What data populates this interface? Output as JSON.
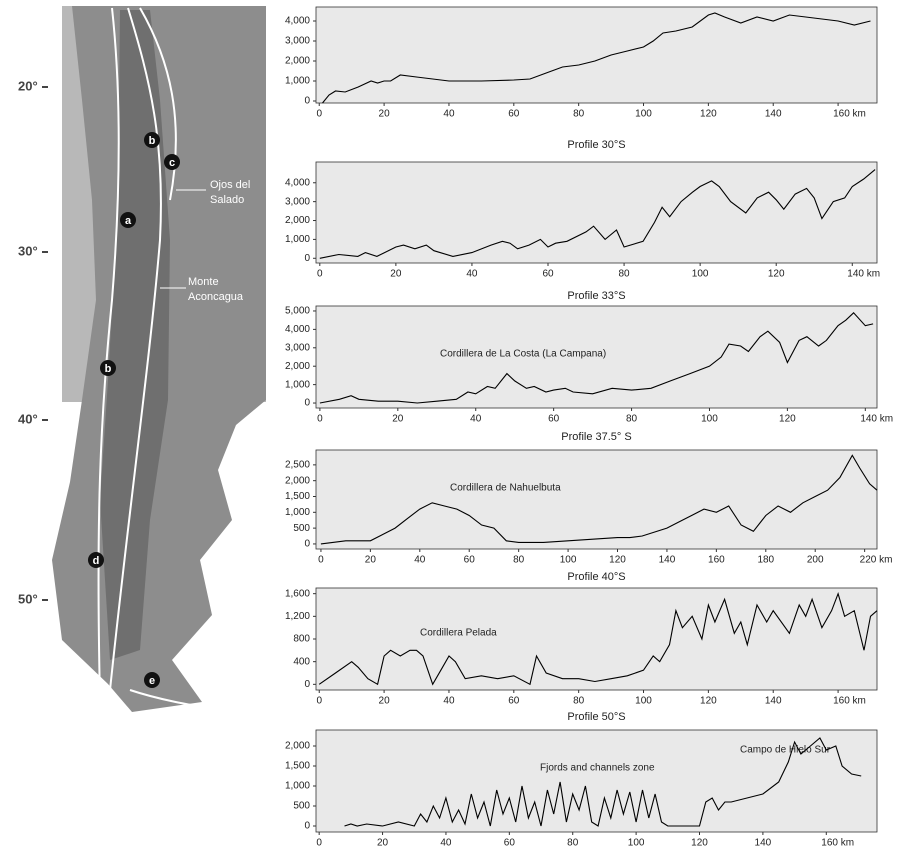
{
  "map": {
    "latitude_labels": [
      "20°",
      "30°",
      "40°",
      "50°"
    ],
    "zone_labels": [
      "b",
      "c",
      "a",
      "b",
      "d",
      "e"
    ],
    "peaks": [
      [
        "Ojos del",
        "Salado"
      ],
      [
        "Monte",
        "Aconcagua"
      ]
    ]
  },
  "chart_data": [
    {
      "type": "line",
      "color": "#000000",
      "x": [
        1,
        3,
        5,
        8,
        12,
        16,
        18,
        20,
        22,
        25,
        30,
        40,
        50,
        60,
        65,
        70,
        75,
        80,
        85,
        90,
        95,
        100,
        103,
        106,
        110,
        115,
        120,
        122,
        125,
        130,
        135,
        140,
        145,
        150,
        155,
        160,
        165,
        170
      ],
      "values": [
        -100,
        300,
        500,
        450,
        700,
        1000,
        900,
        1000,
        1000,
        1300,
        1200,
        1000,
        1000,
        1050,
        1100,
        1400,
        1700,
        1800,
        2000,
        2300,
        2500,
        2700,
        3000,
        3400,
        3500,
        3700,
        4300,
        4400,
        4200,
        3900,
        4200,
        4000,
        4300,
        4200,
        4100,
        4000,
        3800,
        4000
      ],
      "xlim": [
        -1,
        172
      ],
      "ylim": [
        -100,
        4700
      ],
      "xticks": [
        0,
        20,
        40,
        60,
        80,
        100,
        120,
        140,
        {
          "value": 160,
          "label": "160 km"
        }
      ],
      "yticks": [
        0,
        {
          "value": 1000,
          "label": "1,000"
        },
        {
          "value": 2000,
          "label": "2,000"
        },
        {
          "value": 3000,
          "label": "3,000"
        },
        {
          "value": 4000,
          "label": "4,000"
        }
      ]
    },
    {
      "type": "line",
      "title": "Profile 30°S",
      "color": "#000000",
      "x": [
        0,
        5,
        10,
        12,
        15,
        20,
        22,
        25,
        28,
        30,
        35,
        40,
        45,
        48,
        50,
        52,
        55,
        58,
        60,
        62,
        65,
        70,
        72,
        75,
        78,
        80,
        85,
        88,
        90,
        92,
        95,
        98,
        100,
        103,
        105,
        108,
        112,
        115,
        118,
        120,
        122,
        125,
        128,
        130,
        132,
        135,
        138,
        140,
        143,
        146
      ],
      "values": [
        0,
        200,
        100,
        300,
        100,
        600,
        700,
        500,
        700,
        400,
        100,
        300,
        700,
        900,
        800,
        500,
        700,
        1000,
        600,
        800,
        900,
        1400,
        1700,
        1000,
        1500,
        600,
        900,
        1900,
        2700,
        2200,
        3000,
        3500,
        3800,
        4100,
        3800,
        3000,
        2400,
        3200,
        3500,
        3100,
        2600,
        3400,
        3700,
        3200,
        2100,
        3000,
        3200,
        3800,
        4200,
        4700
      ],
      "xlim": [
        -1,
        146.5
      ],
      "ylim": [
        -250,
        5100
      ],
      "xticks": [
        0,
        20,
        40,
        60,
        80,
        100,
        120,
        {
          "value": 140,
          "label": "140 km"
        }
      ],
      "yticks": [
        0,
        {
          "value": 1000,
          "label": "1,000"
        },
        {
          "value": 2000,
          "label": "2,000"
        },
        {
          "value": 3000,
          "label": "3,000"
        },
        {
          "value": 4000,
          "label": "4,000"
        }
      ]
    },
    {
      "type": "line",
      "title": "Profile 33°S",
      "annotations": [
        "Cordillera de La Costa (La Campana)"
      ],
      "color": "#000000",
      "x": [
        0,
        5,
        8,
        10,
        15,
        20,
        25,
        30,
        35,
        38,
        40,
        43,
        45,
        48,
        50,
        53,
        55,
        58,
        60,
        63,
        65,
        70,
        75,
        80,
        85,
        90,
        95,
        100,
        103,
        105,
        108,
        110,
        113,
        115,
        118,
        120,
        123,
        125,
        128,
        130,
        133,
        135,
        137,
        140,
        142
      ],
      "values": [
        0,
        200,
        400,
        200,
        100,
        100,
        0,
        100,
        200,
        600,
        500,
        900,
        800,
        1600,
        1200,
        800,
        900,
        600,
        700,
        800,
        600,
        500,
        800,
        700,
        800,
        1200,
        1600,
        2000,
        2500,
        3200,
        3100,
        2800,
        3600,
        3900,
        3300,
        2200,
        3400,
        3600,
        3100,
        3400,
        4200,
        4500,
        4900,
        4200,
        4300
      ],
      "xlim": [
        -1,
        143
      ],
      "ylim": [
        -270,
        5270
      ],
      "xticks": [
        0,
        20,
        40,
        60,
        80,
        100,
        120,
        {
          "value": 140,
          "label": "140 km"
        }
      ],
      "yticks": [
        0,
        {
          "value": 1000,
          "label": "1,000"
        },
        {
          "value": 2000,
          "label": "2,000"
        },
        {
          "value": 3000,
          "label": "3,000"
        },
        {
          "value": 4000,
          "label": "4,000"
        },
        {
          "value": 5000,
          "label": "5,000"
        }
      ]
    },
    {
      "type": "line",
      "title": "Profile 37.5° S",
      "annotations": [
        "Cordillera de Nahuelbuta"
      ],
      "color": "#000000",
      "x": [
        0,
        10,
        20,
        25,
        30,
        35,
        40,
        45,
        50,
        55,
        60,
        65,
        70,
        75,
        80,
        90,
        100,
        110,
        120,
        125,
        130,
        140,
        145,
        150,
        155,
        160,
        165,
        170,
        175,
        180,
        185,
        190,
        195,
        200,
        205,
        210,
        215,
        218,
        222,
        225
      ],
      "values": [
        0,
        100,
        100,
        300,
        500,
        800,
        1100,
        1300,
        1200,
        1100,
        900,
        600,
        500,
        100,
        50,
        50,
        100,
        150,
        200,
        200,
        250,
        500,
        700,
        900,
        1100,
        1000,
        1200,
        600,
        400,
        900,
        1200,
        1000,
        1300,
        1500,
        1700,
        2100,
        2800,
        2400,
        1900,
        1700
      ],
      "xlim": [
        -2,
        225
      ],
      "ylim": [
        -160,
        2970
      ],
      "xticks": [
        0,
        20,
        40,
        60,
        80,
        100,
        120,
        140,
        160,
        180,
        200,
        {
          "value": 220,
          "label": "220 km"
        }
      ],
      "yticks": [
        0,
        500,
        {
          "value": 1000,
          "label": "1,000"
        },
        {
          "value": 1500,
          "label": "1,500"
        },
        {
          "value": 2000,
          "label": "2,000"
        },
        {
          "value": 2500,
          "label": "2,500"
        }
      ]
    },
    {
      "type": "line",
      "title": "Profile 40°S",
      "annotations": [
        "Cordillera Pelada"
      ],
      "color": "#000000",
      "x": [
        0,
        5,
        10,
        12,
        15,
        18,
        20,
        22,
        25,
        28,
        30,
        32,
        35,
        38,
        40,
        42,
        45,
        50,
        55,
        60,
        65,
        67,
        70,
        75,
        80,
        85,
        90,
        95,
        100,
        103,
        105,
        108,
        110,
        112,
        115,
        118,
        120,
        122,
        125,
        128,
        130,
        132,
        135,
        138,
        140,
        145,
        148,
        150,
        152,
        155,
        158,
        160,
        162,
        165,
        168,
        170,
        172
      ],
      "values": [
        0,
        200,
        400,
        300,
        100,
        0,
        500,
        600,
        500,
        600,
        600,
        500,
        0,
        300,
        500,
        400,
        100,
        150,
        100,
        150,
        0,
        500,
        200,
        100,
        100,
        50,
        100,
        150,
        250,
        500,
        400,
        700,
        1300,
        1000,
        1200,
        800,
        1400,
        1100,
        1500,
        900,
        1100,
        700,
        1400,
        1100,
        1300,
        900,
        1400,
        1200,
        1500,
        1000,
        1300,
        1600,
        1200,
        1300,
        600,
        1200,
        1300
      ],
      "xlim": [
        -1,
        172
      ],
      "ylim": [
        -100,
        1700
      ],
      "xticks": [
        0,
        20,
        40,
        60,
        80,
        100,
        120,
        140,
        {
          "value": 160,
          "label": "160 km"
        }
      ],
      "yticks": [
        0,
        400,
        800,
        {
          "value": 1200,
          "label": "1,200"
        },
        {
          "value": 1600,
          "label": "1,600"
        }
      ]
    },
    {
      "type": "line",
      "title": "Profile 50°S",
      "annotations": [
        "Fjords and channels zone",
        "Campo de Hielo Sur"
      ],
      "color": "#000000",
      "x": [
        8,
        10,
        12,
        15,
        20,
        25,
        30,
        32,
        34,
        36,
        38,
        40,
        42,
        44,
        46,
        48,
        50,
        52,
        54,
        56,
        58,
        60,
        62,
        64,
        66,
        68,
        70,
        72,
        74,
        76,
        78,
        80,
        82,
        84,
        86,
        88,
        90,
        92,
        94,
        96,
        98,
        100,
        102,
        104,
        106,
        108,
        110,
        115,
        120,
        122,
        124,
        126,
        128,
        130,
        140,
        145,
        148,
        150,
        152,
        155,
        158,
        160,
        163,
        165,
        168,
        171
      ],
      "values": [
        0,
        50,
        0,
        50,
        0,
        100,
        0,
        300,
        100,
        500,
        200,
        700,
        100,
        400,
        50,
        800,
        200,
        600,
        0,
        900,
        300,
        700,
        100,
        1000,
        200,
        600,
        0,
        900,
        300,
        1100,
        100,
        800,
        400,
        1000,
        100,
        0,
        700,
        200,
        900,
        300,
        850,
        100,
        900,
        200,
        800,
        100,
        0,
        0,
        0,
        600,
        700,
        400,
        600,
        600,
        800,
        1100,
        1600,
        2100,
        1800,
        2000,
        2200,
        1900,
        2000,
        1500,
        1300,
        1250
      ],
      "xlim": [
        -1,
        176
      ],
      "ylim": [
        -150,
        2400
      ],
      "xticks": [
        0,
        20,
        40,
        60,
        80,
        100,
        120,
        140,
        {
          "value": 160,
          "label": "160 km"
        }
      ],
      "yticks": [
        0,
        500,
        {
          "value": 1000,
          "label": "1,000"
        },
        {
          "value": 1500,
          "label": "1,500"
        },
        {
          "value": 2000,
          "label": "2,000"
        }
      ]
    }
  ]
}
